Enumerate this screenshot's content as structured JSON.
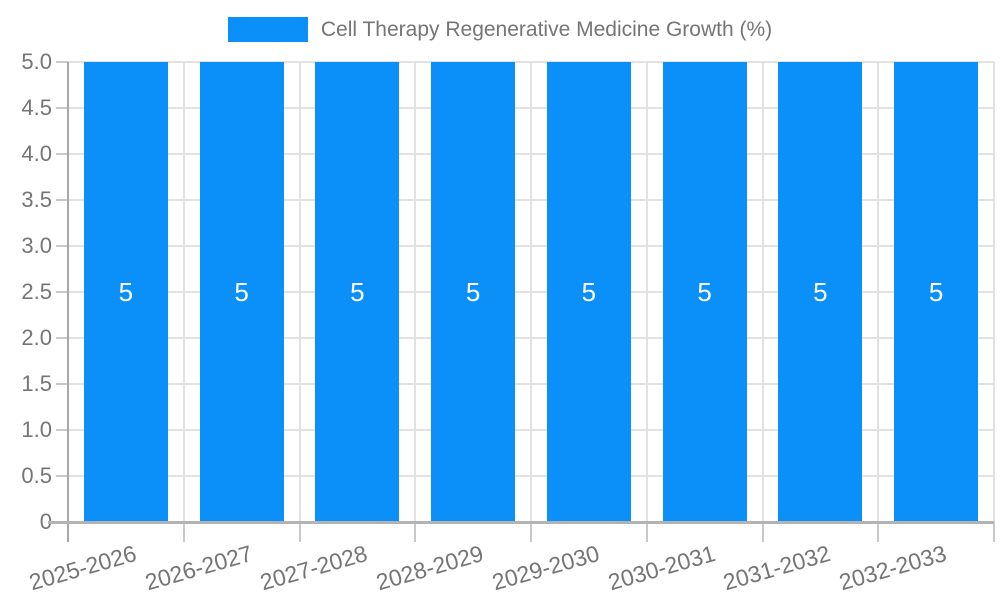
{
  "legend": {
    "label": "Cell Therapy Regenerative Medicine Growth (%)"
  },
  "chart_data": {
    "type": "bar",
    "title": "Cell Therapy Regenerative Medicine Growth (%)",
    "categories": [
      "2025-2026",
      "2026-2027",
      "2027-2028",
      "2028-2029",
      "2029-2030",
      "2030-2031",
      "2031-2032",
      "2032-2033"
    ],
    "values": [
      5,
      5,
      5,
      5,
      5,
      5,
      5,
      5
    ],
    "bar_value_labels": [
      "5",
      "5",
      "5",
      "5",
      "5",
      "5",
      "5",
      "5"
    ],
    "xlabel": "",
    "ylabel": "",
    "ylim": [
      0,
      5
    ],
    "ytick_step": 0.5,
    "ytick_labels": [
      "0",
      "0.5",
      "1.0",
      "1.5",
      "2.0",
      "2.5",
      "3.0",
      "3.5",
      "4.0",
      "4.5",
      "5.0"
    ],
    "grid": true,
    "legend_position": "top-center",
    "colors": {
      "bar": "#0A90F8",
      "gridline": "#e2e2e2",
      "axis": "#a8a8a8",
      "bottom_axis": "#b3b3b3",
      "tick": "#c9c9c9",
      "text": "#757575",
      "bar_label": "#ffffff"
    }
  }
}
